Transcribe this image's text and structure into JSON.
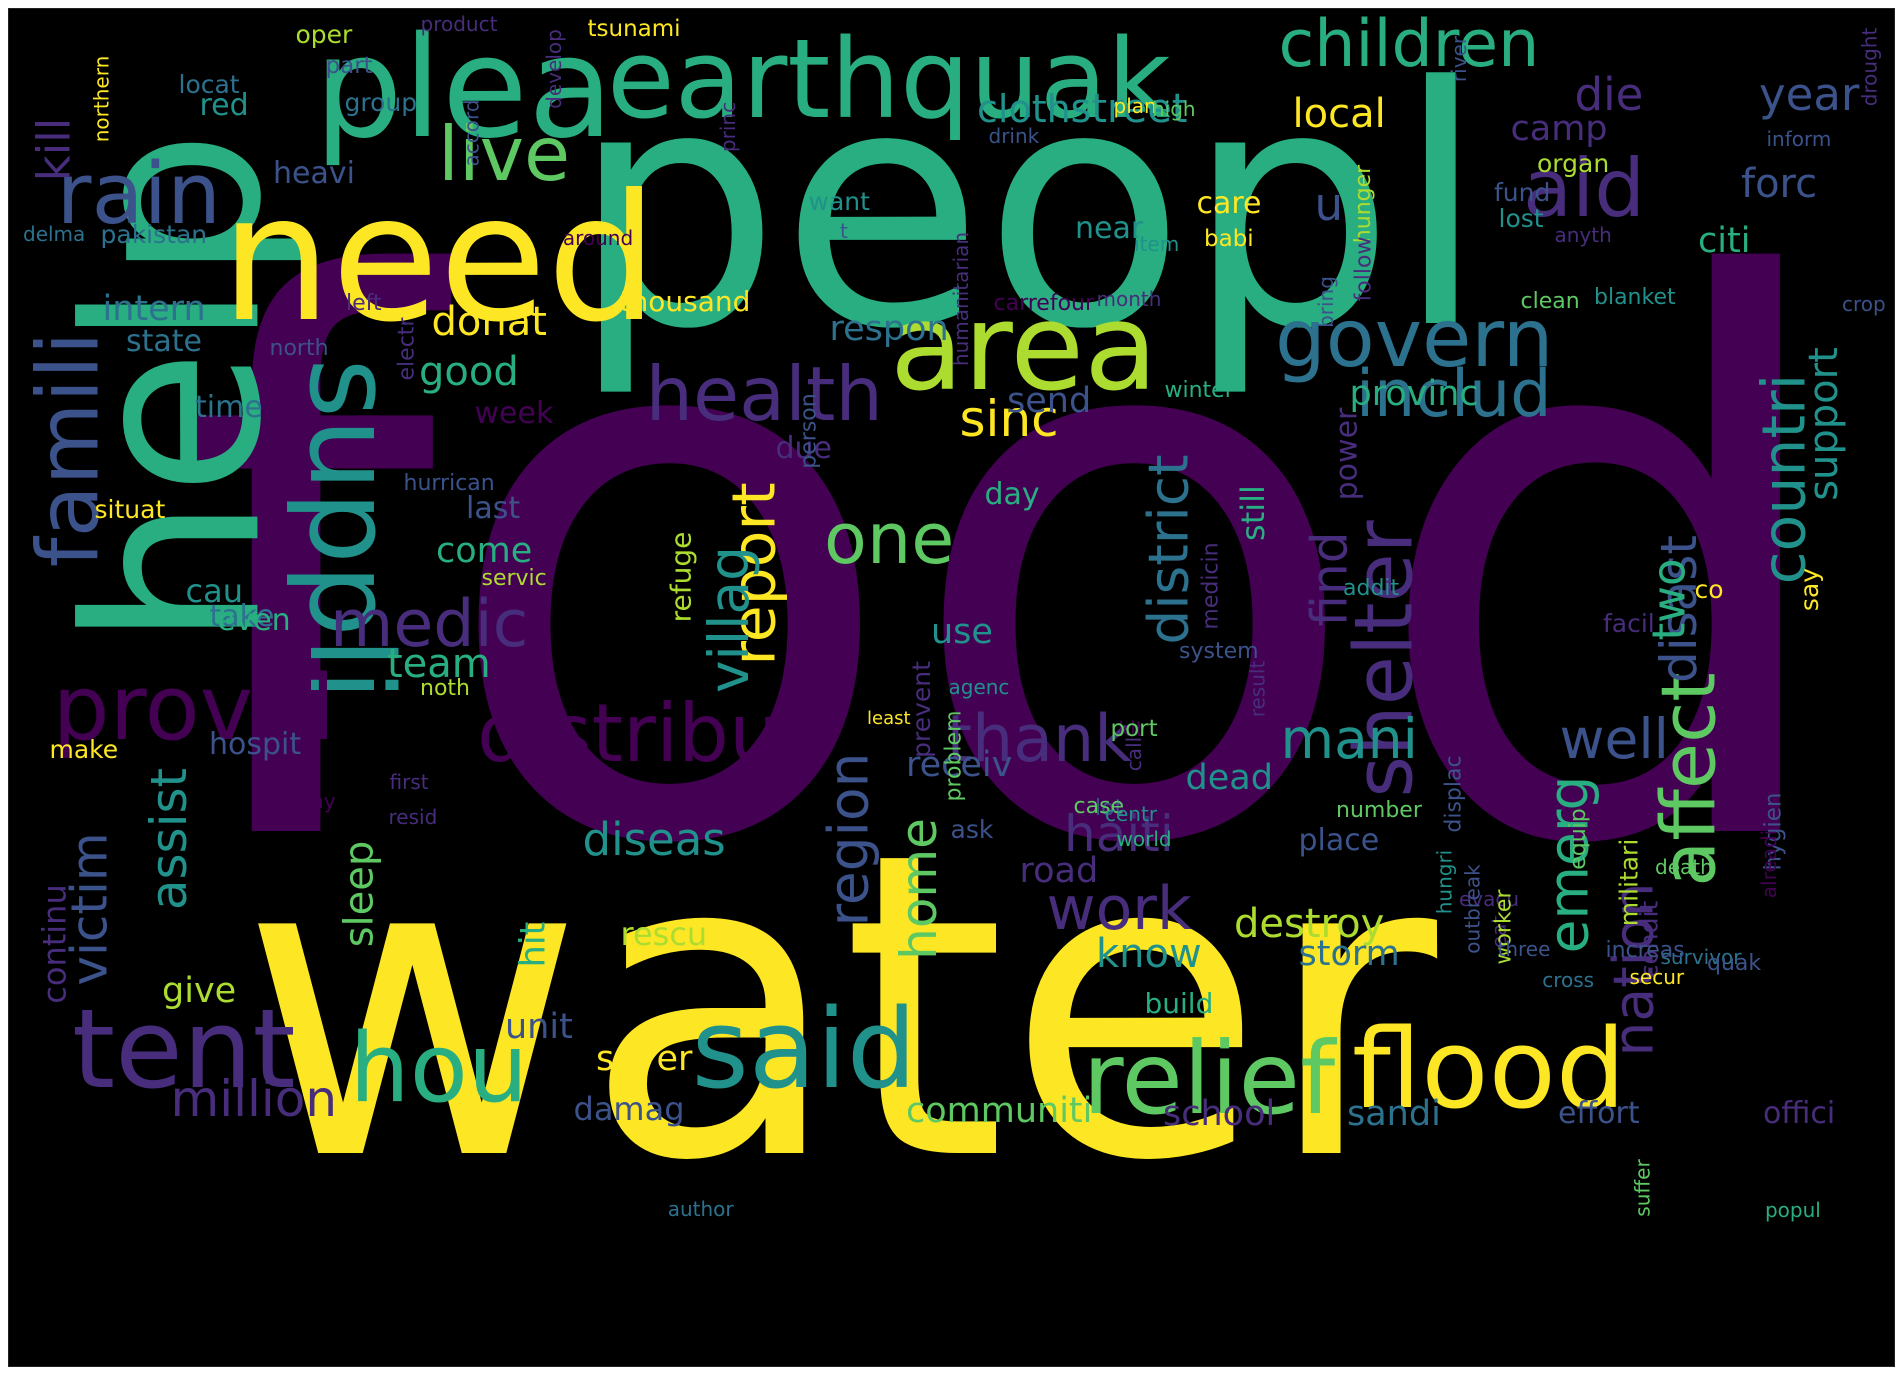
{
  "palette": {
    "background": "#000000",
    "p1": "#440154",
    "p2": "#472d7b",
    "p3": "#3b528b",
    "p4": "#2c728e",
    "p5": "#21918c",
    "p6": "#28ae80",
    "p7": "#5ec962",
    "p8": "#addc30",
    "p9": "#fde725"
  },
  "words": [
    {
      "text": "food",
      "c": "p1",
      "r": 0
    },
    {
      "text": "water",
      "c": "p9",
      "r": 0
    },
    {
      "text": "peopl",
      "c": "p6",
      "r": 0
    },
    {
      "text": "help",
      "c": "p6",
      "r": 270
    },
    {
      "text": "need",
      "c": "p9",
      "r": 0
    },
    {
      "text": "plea",
      "c": "p6",
      "r": 0
    },
    {
      "text": "earthquak",
      "c": "p6",
      "r": 0
    },
    {
      "text": "area",
      "c": "p8",
      "r": 0
    },
    {
      "text": "suppli",
      "c": "p5",
      "r": 90
    },
    {
      "text": "flood",
      "c": "p9",
      "r": 0
    },
    {
      "text": "relief",
      "c": "p7",
      "r": 0
    },
    {
      "text": "said",
      "c": "p5",
      "r": 0
    },
    {
      "text": "tent",
      "c": "p2",
      "r": 0
    },
    {
      "text": "hou",
      "c": "p6",
      "r": 0
    },
    {
      "text": "famili",
      "c": "p3",
      "r": 270
    },
    {
      "text": "provid",
      "c": "p1",
      "r": 0
    },
    {
      "text": "govern",
      "c": "p4",
      "r": 0
    },
    {
      "text": "aid",
      "c": "p2",
      "r": 0
    },
    {
      "text": "children",
      "c": "p6",
      "r": 0
    },
    {
      "text": "live",
      "c": "p7",
      "r": 0
    },
    {
      "text": "rain",
      "c": "p3",
      "r": 0
    },
    {
      "text": "health",
      "c": "p2",
      "r": 0
    },
    {
      "text": "distribut",
      "c": "p1",
      "r": 0
    },
    {
      "text": "shelter",
      "c": "p2",
      "r": 270
    },
    {
      "text": "affect",
      "c": "p7",
      "r": 270
    },
    {
      "text": "countri",
      "c": "p5",
      "r": 270
    },
    {
      "text": "medic",
      "c": "p2",
      "r": 0
    },
    {
      "text": "includ",
      "c": "p4",
      "r": 0
    },
    {
      "text": "thank",
      "c": "p2",
      "r": 0
    },
    {
      "text": "sinc",
      "c": "p9",
      "r": 0
    },
    {
      "text": "one",
      "c": "p7",
      "r": 0
    },
    {
      "text": "report",
      "c": "p9",
      "r": 270
    },
    {
      "text": "villag",
      "c": "p5",
      "r": 270
    },
    {
      "text": "district",
      "c": "p4",
      "r": 270
    },
    {
      "text": "disast",
      "c": "p3",
      "r": 270
    },
    {
      "text": "region",
      "c": "p3",
      "r": 270
    },
    {
      "text": "work",
      "c": "p2",
      "r": 0
    },
    {
      "text": "haiti",
      "c": "p2",
      "r": 0
    },
    {
      "text": "mani",
      "c": "p5",
      "r": 0
    },
    {
      "text": "well",
      "c": "p3",
      "r": 0
    },
    {
      "text": "emerg",
      "c": "p6",
      "r": 270
    },
    {
      "text": "nation",
      "c": "p2",
      "r": 270
    },
    {
      "text": "victim",
      "c": "p3",
      "r": 270
    },
    {
      "text": "assist",
      "c": "p5",
      "r": 270
    },
    {
      "text": "diseas",
      "c": "p5",
      "r": 0
    },
    {
      "text": "million",
      "c": "p2",
      "r": 0
    },
    {
      "text": "communiti",
      "c": "p7",
      "r": 0
    },
    {
      "text": "school",
      "c": "p2",
      "r": 0
    },
    {
      "text": "sandi",
      "c": "p4",
      "r": 0
    },
    {
      "text": "effort",
      "c": "p3",
      "r": 0
    },
    {
      "text": "offici",
      "c": "p2",
      "r": 0
    },
    {
      "text": "destroy",
      "c": "p8",
      "r": 0
    },
    {
      "text": "storm",
      "c": "p4",
      "r": 0
    },
    {
      "text": "know",
      "c": "p5",
      "r": 0
    },
    {
      "text": "home",
      "c": "p7",
      "r": 270
    },
    {
      "text": "rescu",
      "c": "p8",
      "r": 0
    },
    {
      "text": "sleep",
      "c": "p7",
      "r": 270
    },
    {
      "text": "sever",
      "c": "p9",
      "r": 0
    },
    {
      "text": "damag",
      "c": "p3",
      "r": 0
    },
    {
      "text": "unit",
      "c": "p3",
      "r": 0
    },
    {
      "text": "give",
      "c": "p8",
      "r": 0
    },
    {
      "text": "hit",
      "c": "p6",
      "r": 270
    },
    {
      "text": "team",
      "c": "p6",
      "r": 0
    },
    {
      "text": "find",
      "c": "p2",
      "r": 270
    },
    {
      "text": "two",
      "c": "p6",
      "r": 270
    },
    {
      "text": "year",
      "c": "p3",
      "r": 0
    },
    {
      "text": "die",
      "c": "p2",
      "r": 0
    },
    {
      "text": "local",
      "c": "p9",
      "r": 0
    },
    {
      "text": "street",
      "c": "p5",
      "r": 0
    },
    {
      "text": "cloth",
      "c": "p5",
      "r": 0
    },
    {
      "text": "camp",
      "c": "p2",
      "r": 0
    },
    {
      "text": "forc",
      "c": "p3",
      "r": 0
    },
    {
      "text": "u",
      "c": "p3",
      "r": 0
    },
    {
      "text": "citi",
      "c": "p6",
      "r": 0
    },
    {
      "text": "support",
      "c": "p5",
      "r": 270
    },
    {
      "text": "kill",
      "c": "p2",
      "r": 270
    },
    {
      "text": "red",
      "c": "p5",
      "r": 0
    },
    {
      "text": "heavi",
      "c": "p3",
      "r": 0
    },
    {
      "text": "intern",
      "c": "p4",
      "r": 0
    },
    {
      "text": "state",
      "c": "p4",
      "r": 0
    },
    {
      "text": "donat",
      "c": "p9",
      "r": 0
    },
    {
      "text": "good",
      "c": "p6",
      "r": 0
    },
    {
      "text": "new",
      "c": "p6",
      "r": 0
    },
    {
      "text": "respon",
      "c": "p4",
      "r": 0
    },
    {
      "text": "near",
      "c": "p5",
      "r": 0
    },
    {
      "text": "provinc",
      "c": "p6",
      "r": 0
    },
    {
      "text": "send",
      "c": "p3",
      "r": 0
    },
    {
      "text": "week",
      "c": "p1",
      "r": 0
    },
    {
      "text": "due",
      "c": "p2",
      "r": 0
    },
    {
      "text": "thousand",
      "c": "p9",
      "r": 0
    },
    {
      "text": "care",
      "c": "p9",
      "r": 0
    },
    {
      "text": "babi",
      "c": "p9",
      "r": 0
    },
    {
      "text": "come",
      "c": "p6",
      "r": 0
    },
    {
      "text": "cau",
      "c": "p5",
      "r": 0
    },
    {
      "text": "take",
      "c": "p4",
      "r": 0
    },
    {
      "text": "last",
      "c": "p3",
      "r": 0
    },
    {
      "text": "hospit",
      "c": "p3",
      "r": 0
    },
    {
      "text": "use",
      "c": "p5",
      "r": 0
    },
    {
      "text": "day",
      "c": "p6",
      "r": 0
    },
    {
      "text": "even",
      "c": "p6",
      "r": 0
    },
    {
      "text": "receiv",
      "c": "p3",
      "r": 0
    },
    {
      "text": "ask",
      "c": "p3",
      "r": 0
    },
    {
      "text": "dead",
      "c": "p5",
      "r": 0
    },
    {
      "text": "road",
      "c": "p2",
      "r": 0
    },
    {
      "text": "make",
      "c": "p9",
      "r": 0
    },
    {
      "text": "continu",
      "c": "p2",
      "r": 270
    },
    {
      "text": "place",
      "c": "p3",
      "r": 0
    },
    {
      "text": "build",
      "c": "p6",
      "r": 0
    },
    {
      "text": "power",
      "c": "p2",
      "r": 270
    },
    {
      "text": "still",
      "c": "p6",
      "r": 270
    },
    {
      "text": "refuge",
      "c": "p8",
      "r": 270
    },
    {
      "text": "oper",
      "c": "p8",
      "r": 0
    },
    {
      "text": "product",
      "c": "p2",
      "r": 0
    },
    {
      "text": "tsunami",
      "c": "p9",
      "r": 0
    },
    {
      "text": "part",
      "c": "p3",
      "r": 0
    },
    {
      "text": "group",
      "c": "p4",
      "r": 0
    },
    {
      "text": "locat",
      "c": "p4",
      "r": 0
    },
    {
      "text": "develop",
      "c": "p2",
      "r": 270
    },
    {
      "text": "northern",
      "c": "p9",
      "r": 270
    },
    {
      "text": "river",
      "c": "p3",
      "r": 270
    },
    {
      "text": "drought",
      "c": "p2",
      "r": 270
    },
    {
      "text": "inform",
      "c": "p3",
      "r": 0
    },
    {
      "text": "plan",
      "c": "p9",
      "r": 0
    },
    {
      "text": "high",
      "c": "p7",
      "r": 0
    },
    {
      "text": "drink",
      "c": "p3",
      "r": 0
    },
    {
      "text": "organ",
      "c": "p8",
      "r": 0
    },
    {
      "text": "fund",
      "c": "p3",
      "r": 0
    },
    {
      "text": "lost",
      "c": "p5",
      "r": 0
    },
    {
      "text": "want",
      "c": "p5",
      "r": 0
    },
    {
      "text": "t",
      "c": "p3",
      "r": 0
    },
    {
      "text": "anyth",
      "c": "p2",
      "r": 0
    },
    {
      "text": "princ",
      "c": "p2",
      "r": 270
    },
    {
      "text": "hunger",
      "c": "p8",
      "r": 270
    },
    {
      "text": "follow",
      "c": "p2",
      "r": 270
    },
    {
      "text": "delma",
      "c": "p4",
      "r": 0
    },
    {
      "text": "pakistan",
      "c": "p4",
      "r": 0
    },
    {
      "text": "left",
      "c": "p2",
      "r": 0
    },
    {
      "text": "carrefour",
      "c": "p1",
      "r": 0
    },
    {
      "text": "month",
      "c": "p2",
      "r": 0
    },
    {
      "text": "humanitarian",
      "c": "p2",
      "r": 270
    },
    {
      "text": "bring",
      "c": "p3",
      "r": 270
    },
    {
      "text": "clean",
      "c": "p7",
      "r": 0
    },
    {
      "text": "blanket",
      "c": "p5",
      "r": 0
    },
    {
      "text": "crop",
      "c": "p3",
      "r": 0
    },
    {
      "text": "north",
      "c": "p3",
      "r": 0
    },
    {
      "text": "electr",
      "c": "p2",
      "r": 270
    },
    {
      "text": "time",
      "c": "p4",
      "r": 0
    },
    {
      "text": "winter",
      "c": "p6",
      "r": 0
    },
    {
      "text": "person",
      "c": "p3",
      "r": 270
    },
    {
      "text": "hurrican",
      "c": "p3",
      "r": 0
    },
    {
      "text": "situat",
      "c": "p9",
      "r": 0
    },
    {
      "text": "servic",
      "c": "p8",
      "r": 0
    },
    {
      "text": "noth",
      "c": "p8",
      "r": 0
    },
    {
      "text": "medicin",
      "c": "p2",
      "r": 270
    },
    {
      "text": "addit",
      "c": "p5",
      "r": 0
    },
    {
      "text": "system",
      "c": "p3",
      "r": 0
    },
    {
      "text": "agenc",
      "c": "p5",
      "r": 0
    },
    {
      "text": "result",
      "c": "p2",
      "r": 270
    },
    {
      "text": "prevent",
      "c": "p2",
      "r": 270
    },
    {
      "text": "facil",
      "c": "p2",
      "r": 0
    },
    {
      "text": "co",
      "c": "p9",
      "r": 0
    },
    {
      "text": "say",
      "c": "p9",
      "r": 270
    },
    {
      "text": "displac",
      "c": "p3",
      "r": 270
    },
    {
      "text": "problem",
      "c": "p7",
      "r": 270
    },
    {
      "text": "least",
      "c": "p9",
      "r": 0
    },
    {
      "text": "kit",
      "c": "p1",
      "r": 0
    },
    {
      "text": "port",
      "c": "p7",
      "r": 0
    },
    {
      "text": "call",
      "c": "p2",
      "r": 270
    },
    {
      "text": "number",
      "c": "p7",
      "r": 0
    },
    {
      "text": "lot",
      "c": "p3",
      "r": 0
    },
    {
      "text": "resid",
      "c": "p2",
      "r": 0
    },
    {
      "text": "first",
      "c": "p2",
      "r": 0
    },
    {
      "text": "may",
      "c": "p1",
      "r": 0
    },
    {
      "text": "case",
      "c": "p7",
      "r": 0
    },
    {
      "text": "centr",
      "c": "p5",
      "r": 0
    },
    {
      "text": "world",
      "c": "p6",
      "r": 0
    },
    {
      "text": "equip",
      "c": "p7",
      "r": 270
    },
    {
      "text": "hygien",
      "c": "p3",
      "r": 270
    },
    {
      "text": "alreadi",
      "c": "p1",
      "r": 270
    },
    {
      "text": "militari",
      "c": "p8",
      "r": 270
    },
    {
      "text": "hungri",
      "c": "p5",
      "r": 270
    },
    {
      "text": "evacu",
      "c": "p2",
      "r": 0
    },
    {
      "text": "outbreak",
      "c": "p3",
      "r": 270
    },
    {
      "text": "eat",
      "c": "p2",
      "r": 270
    },
    {
      "text": "condit",
      "c": "p2",
      "r": 270
    },
    {
      "text": "worker",
      "c": "p8",
      "r": 270
    },
    {
      "text": "three",
      "c": "p3",
      "r": 0
    },
    {
      "text": "death",
      "c": "p7",
      "r": 0
    },
    {
      "text": "survivor",
      "c": "p4",
      "r": 0
    },
    {
      "text": "increas",
      "c": "p3",
      "r": 0
    },
    {
      "text": "secur",
      "c": "p9",
      "r": 0
    },
    {
      "text": "quak",
      "c": "p3",
      "r": 0
    },
    {
      "text": "suffer",
      "c": "p7",
      "r": 270
    },
    {
      "text": "author",
      "c": "p4",
      "r": 0
    },
    {
      "text": "popul",
      "c": "p6",
      "r": 0
    },
    {
      "text": "accord",
      "c": "p3",
      "r": 270
    },
    {
      "text": "item",
      "c": "p5",
      "r": 0
    },
    {
      "text": "cross",
      "c": "p4",
      "r": 0
    },
    {
      "text": "around",
      "c": "p1",
      "r": 0
    }
  ]
}
